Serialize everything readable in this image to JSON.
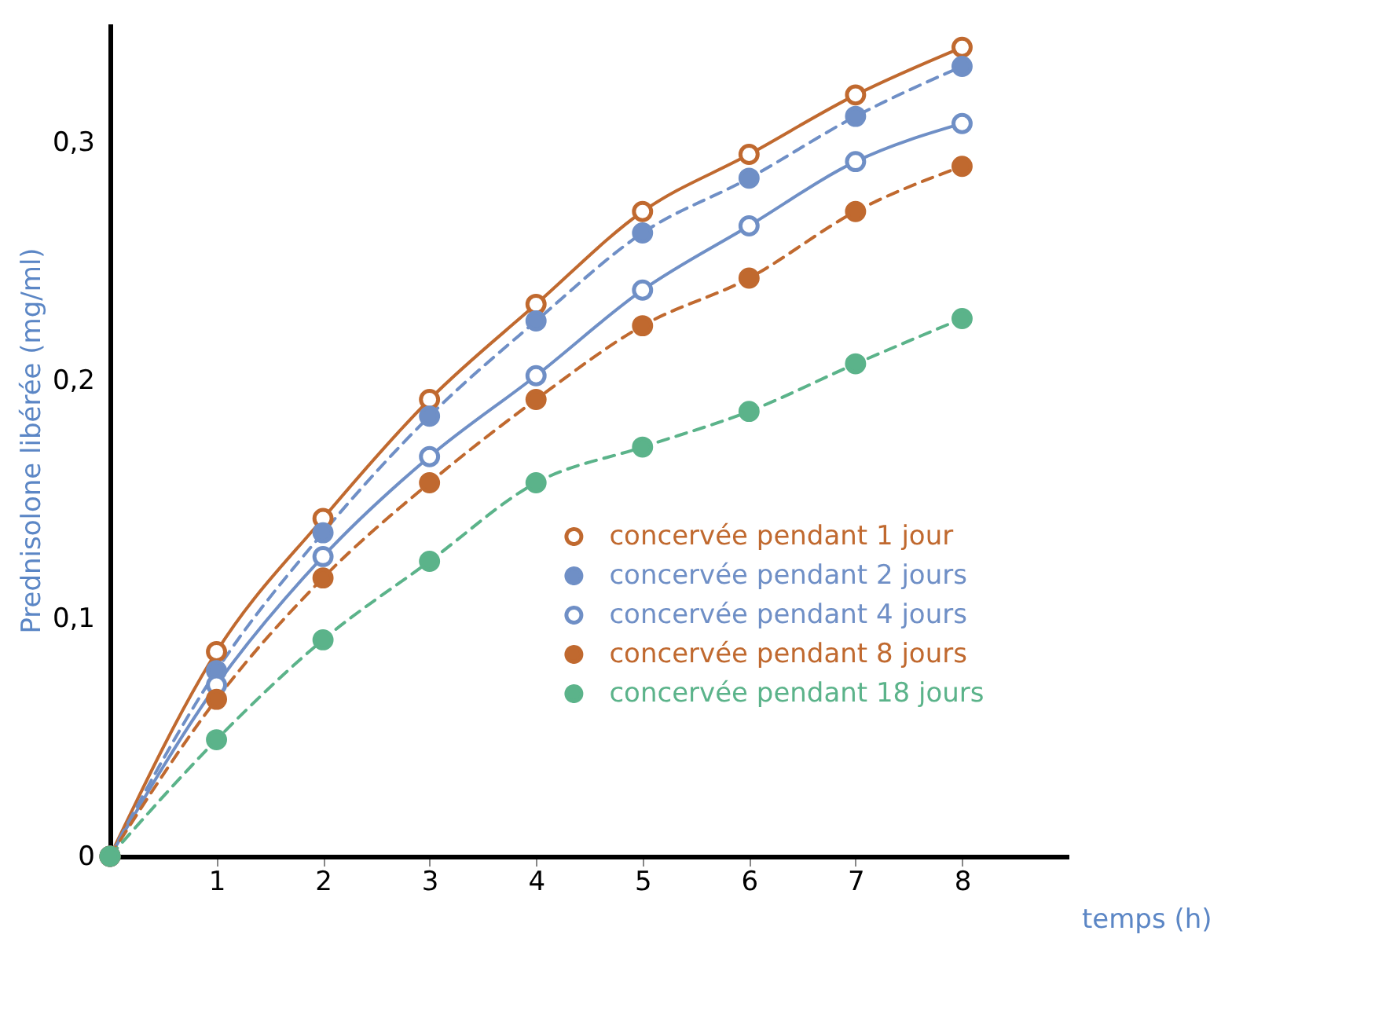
{
  "chart_data": {
    "type": "line",
    "xlabel": "temps (h)",
    "ylabel": "Prednisolone libérée (mg/ml)",
    "x": [
      0,
      1,
      2,
      3,
      4,
      5,
      6,
      7,
      8
    ],
    "series": [
      {
        "name": "concervée pendant 1 jour",
        "color": "#c0692f",
        "line_style": "solid",
        "values": [
          0,
          0.086,
          0.142,
          0.192,
          0.232,
          0.271,
          0.295,
          0.32,
          0.34
        ]
      },
      {
        "name": "concervée pendant 2 jours",
        "color": "#6f8fc6",
        "line_style": "dashed",
        "values": [
          0,
          0.078,
          0.136,
          0.185,
          0.225,
          0.262,
          0.285,
          0.311,
          0.332
        ]
      },
      {
        "name": "concervée pendant 4 jours",
        "color": "#6f8fc6",
        "line_style": "solid",
        "values": [
          0,
          0.072,
          0.126,
          0.168,
          0.202,
          0.238,
          0.265,
          0.292,
          0.308
        ]
      },
      {
        "name": "concervée pendant 8 jours",
        "color": "#c0692f",
        "line_style": "dashed",
        "values": [
          0,
          0.066,
          0.117,
          0.157,
          0.192,
          0.223,
          0.243,
          0.271,
          0.29
        ]
      },
      {
        "name": "concervée pendant 18 jours",
        "color": "#5bb38a",
        "line_style": "dashed",
        "values": [
          0,
          0.049,
          0.091,
          0.124,
          0.157,
          0.172,
          0.187,
          0.207,
          0.226
        ]
      }
    ],
    "xlim": [
      0,
      9
    ],
    "ylim": [
      0,
      0.35
    ],
    "xticks": [
      1,
      2,
      3,
      4,
      5,
      6,
      7,
      8
    ],
    "yticks": [
      {
        "value": 0,
        "label": "0"
      },
      {
        "value": 0.1,
        "label": "0,1"
      },
      {
        "value": 0.2,
        "label": "0,2"
      },
      {
        "value": 0.3,
        "label": "0,3"
      }
    ],
    "marker": "circle",
    "legend": "bottom right",
    "grid": false
  }
}
